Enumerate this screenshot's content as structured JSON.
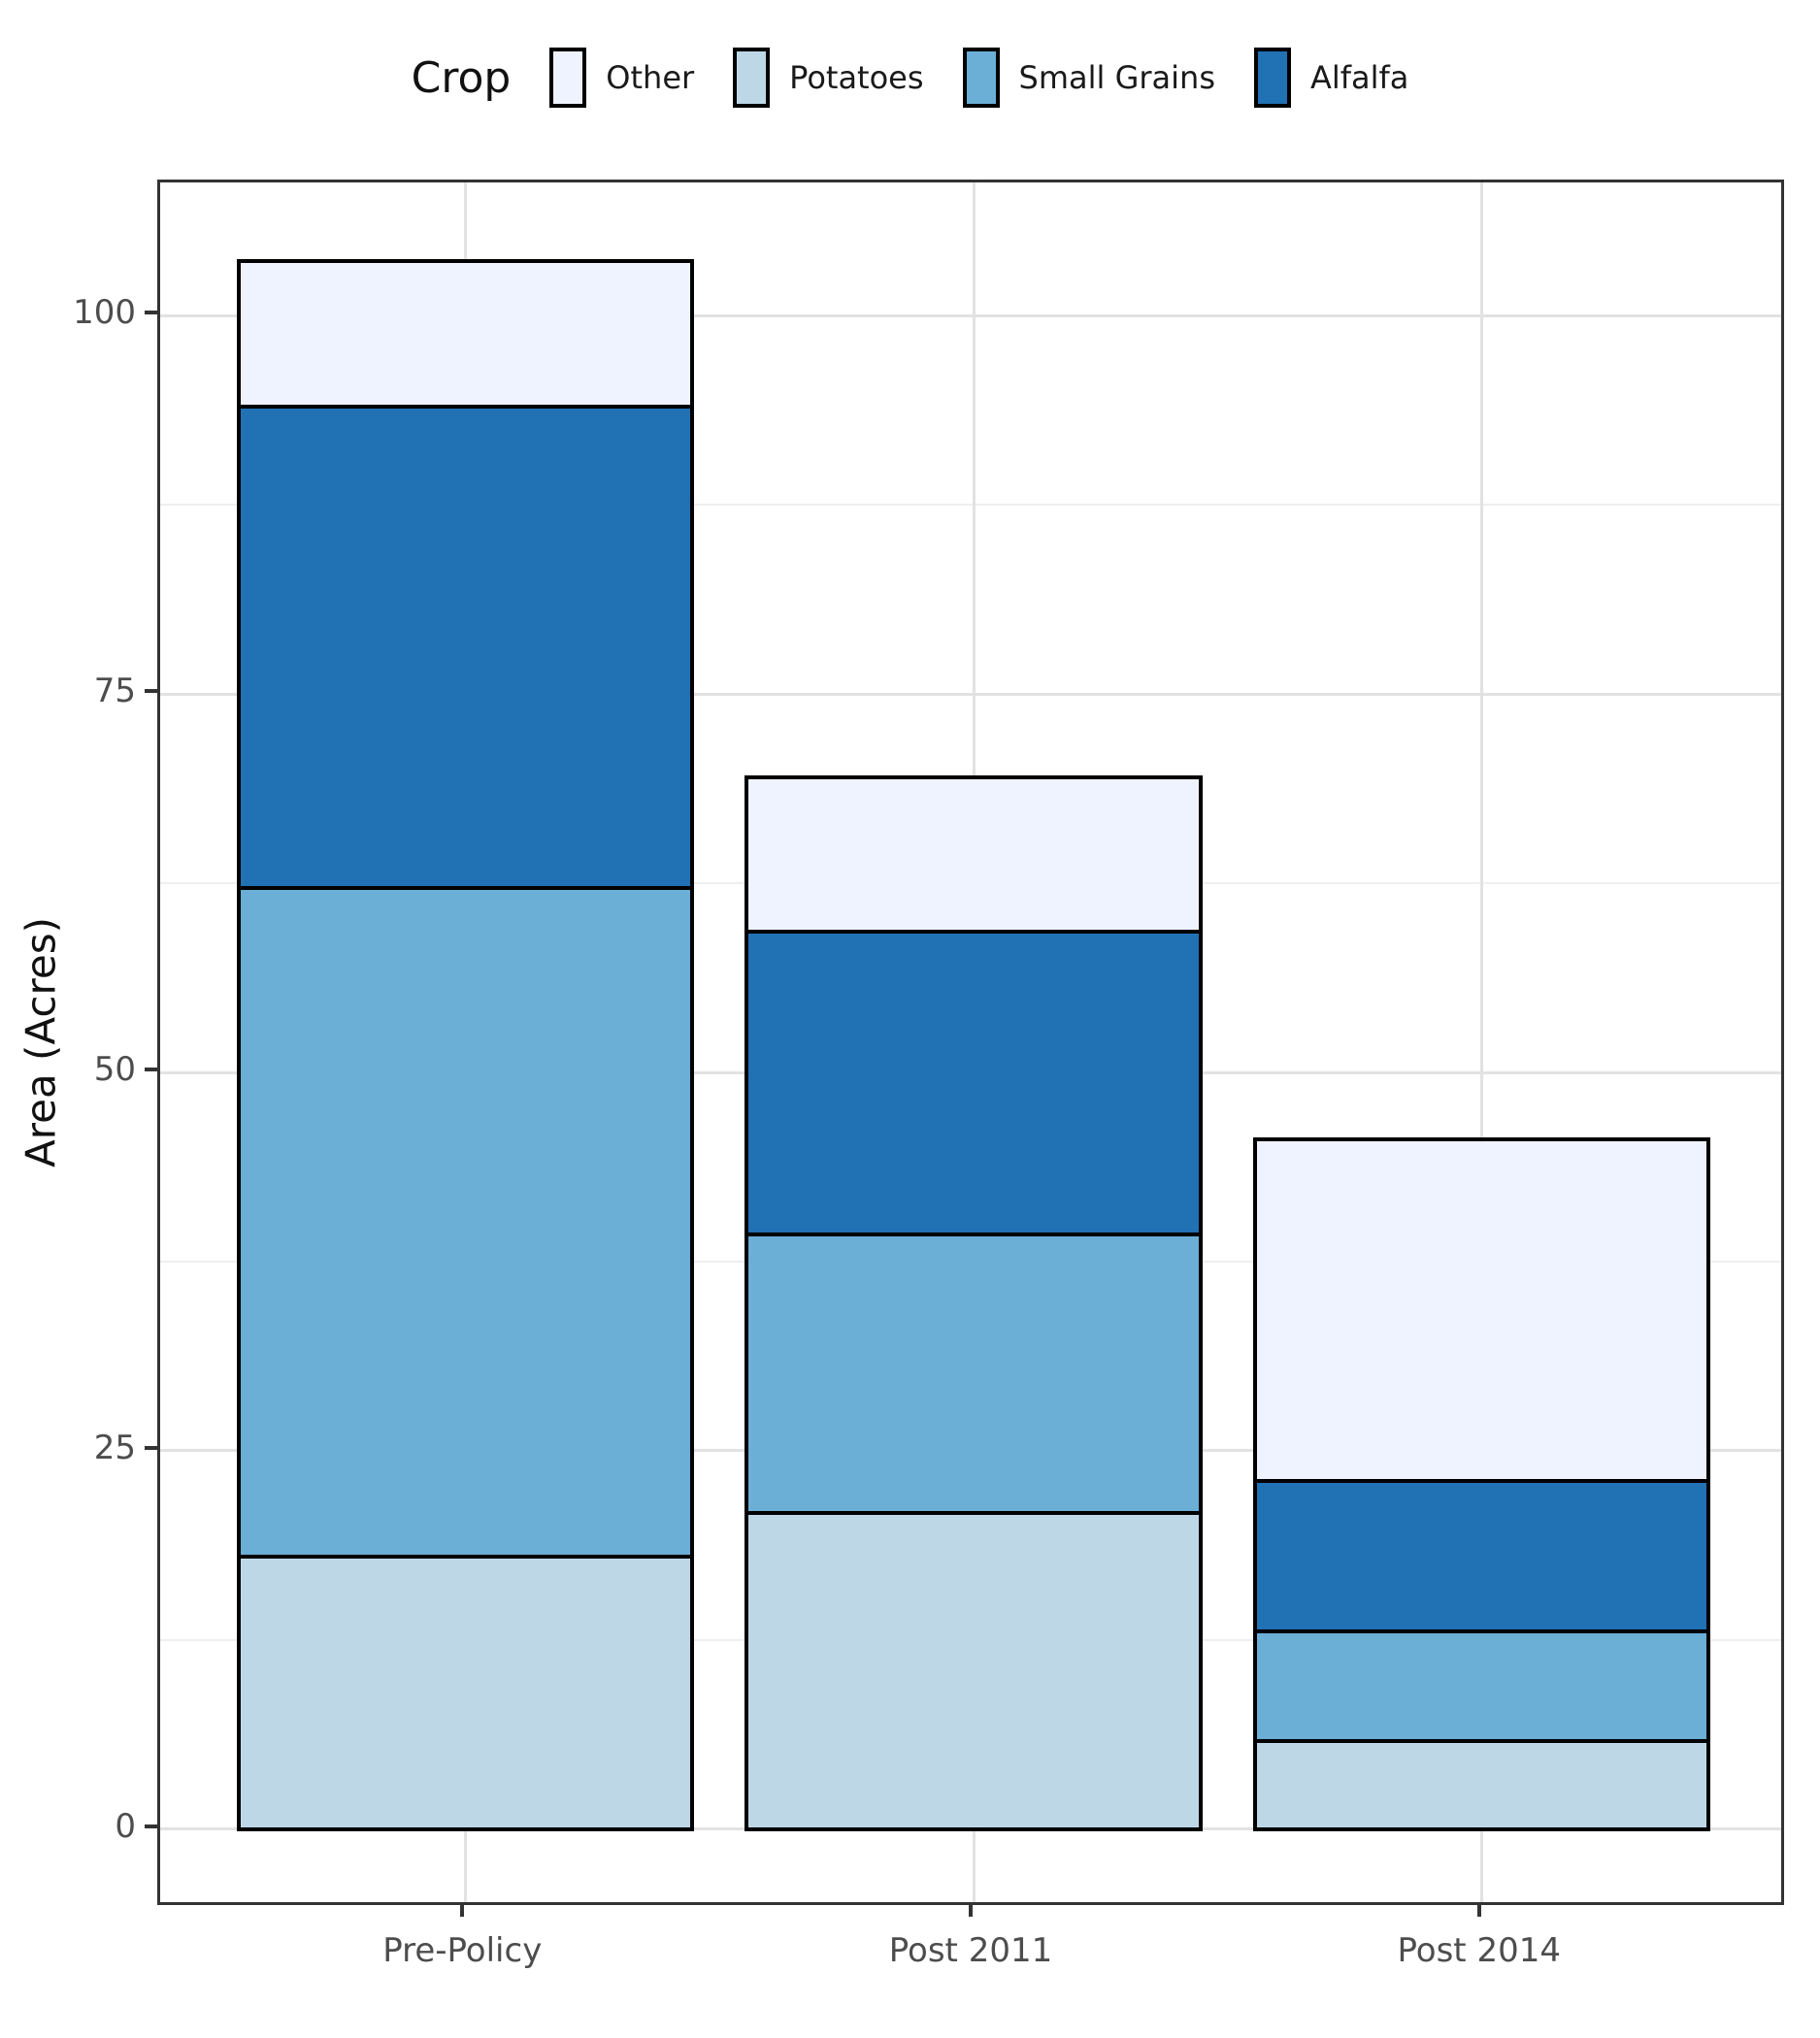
{
  "legend": {
    "title": "Crop",
    "items": [
      {
        "label": "Other",
        "color": "#EFF3FF"
      },
      {
        "label": "Potatoes",
        "color": "#BDD7E7"
      },
      {
        "label": "Small Grains",
        "color": "#6BAED6"
      },
      {
        "label": "Alfalfa",
        "color": "#2171B5"
      }
    ]
  },
  "chart_data": {
    "type": "bar",
    "stacked": true,
    "title": "",
    "xlabel": "",
    "ylabel": "Area (Acres)",
    "categories": [
      "Pre-Policy",
      "Post 2011",
      "Post 2014"
    ],
    "series": [
      {
        "name": "Potatoes",
        "color": "#BDD7E7",
        "values": [
          18.0,
          20.9,
          5.8
        ]
      },
      {
        "name": "Small Grains",
        "color": "#6BAED6",
        "values": [
          44.2,
          18.4,
          7.3
        ]
      },
      {
        "name": "Alfalfa",
        "color": "#2171B5",
        "values": [
          31.8,
          20.0,
          9.9
        ]
      },
      {
        "name": "Other",
        "color": "#EFF3FF",
        "values": [
          9.6,
          10.2,
          22.6
        ]
      }
    ],
    "bar_totals": [
      103.6,
      69.5,
      45.6
    ],
    "yticks": [
      0,
      25,
      50,
      75,
      100
    ],
    "minor_yticks": [
      12.5,
      37.5,
      62.5,
      87.5
    ],
    "ylim": [
      -5.2,
      108.8
    ],
    "grid": true,
    "legend_position": "top",
    "bar_border_color": "#000000",
    "panel_border_color": "#333333",
    "axis_text_color": "#4d4d4d"
  }
}
